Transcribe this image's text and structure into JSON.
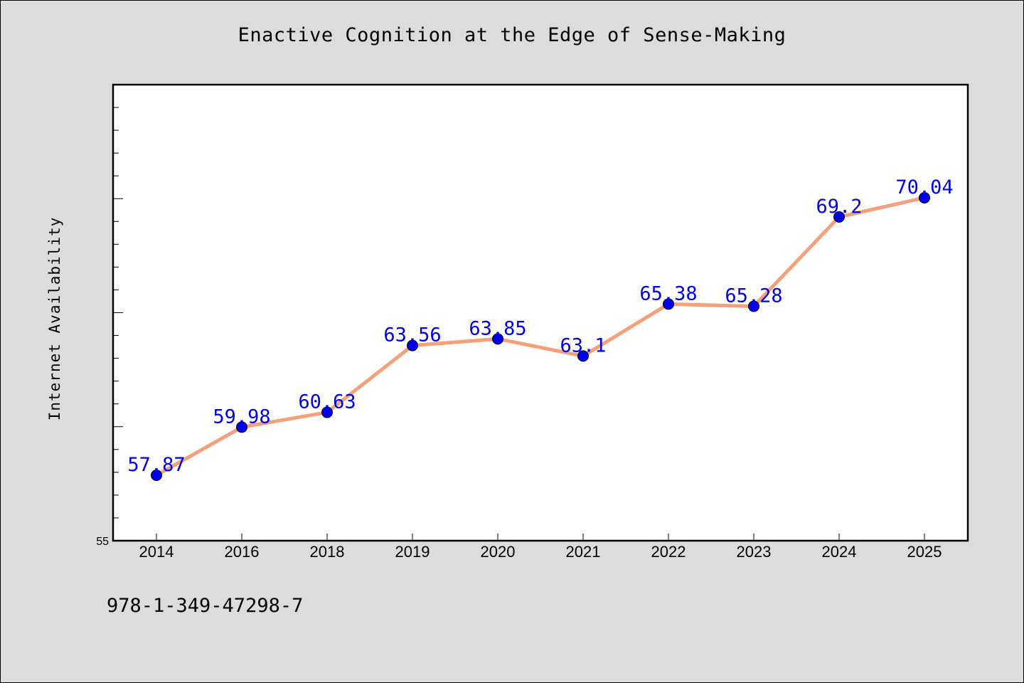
{
  "chart_data": {
    "type": "line",
    "title": "Enactive Cognition at the Edge of Sense-Making",
    "xlabel": "",
    "ylabel": "Internet Availability",
    "categories": [
      "2014",
      "2016",
      "2018",
      "2019",
      "2020",
      "2021",
      "2022",
      "2023",
      "2024",
      "2025"
    ],
    "series": [
      {
        "values": [
          57.87,
          59.98,
          60.63,
          63.56,
          63.85,
          63.1,
          65.38,
          65.28,
          69.2,
          70.04
        ]
      }
    ],
    "data_labels": [
      "57.87",
      "59.98",
      "60.63",
      "63.56",
      "63.85",
      "63.1",
      "65.38",
      "65.28",
      "69.2",
      "70.04"
    ],
    "ylim": [
      55,
      75
    ],
    "y_tick_label": "55",
    "grid": false,
    "colors": {
      "line": "#f4a07a",
      "marker": "#0000ee",
      "label": "#0000ee",
      "background": "#dcdcdc",
      "plot_background": "#ffffff"
    }
  },
  "footer": {
    "isbn": "978-1-349-47298-7"
  }
}
